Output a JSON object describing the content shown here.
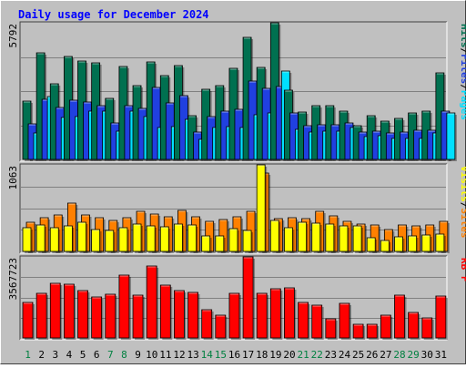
{
  "colors": {
    "background": "#c0c0c0",
    "frame_light": "#ffffff",
    "frame_dark": "#404040",
    "gridline": "#808080",
    "title": "#0000ff",
    "hits": "#007050",
    "files": "#2040e0",
    "pages": "#00e0ff",
    "visits": "#ffff00",
    "sites": "#ff8000",
    "kbf": "#ff0000",
    "weekend_day": "#008040",
    "weekday_day": "#000000"
  },
  "chart_data": {
    "type": "bar",
    "title": "Daily usage for December 2024",
    "categories": [
      "1",
      "2",
      "3",
      "4",
      "5",
      "6",
      "7",
      "8",
      "9",
      "10",
      "11",
      "12",
      "13",
      "14",
      "15",
      "16",
      "17",
      "18",
      "19",
      "20",
      "21",
      "22",
      "23",
      "24",
      "25",
      "26",
      "27",
      "28",
      "29",
      "30",
      "31"
    ],
    "weekend_days": [
      "1",
      "7",
      "8",
      "14",
      "15",
      "21",
      "22",
      "28",
      "29"
    ],
    "panels": [
      {
        "max_label": "5792",
        "ylim": [
          0,
          5792
        ],
        "axis_labels": [
          {
            "text": "Hits",
            "color": "#007050"
          },
          {
            "text": "Files",
            "color": "#2040e0"
          },
          {
            "text": "Pages",
            "color": "#00e0ff"
          }
        ],
        "separator": "/",
        "series": [
          {
            "name": "Hits",
            "values": [
              2473,
              4508,
              3202,
              4344,
              4176,
              4076,
              2587,
              3953,
              3146,
              4118,
              3565,
              3990,
              1843,
              2983,
              3121,
              3861,
              5190,
              3888,
              5792,
              2940,
              2010,
              2263,
              2283,
              2058,
              1431,
              1869,
              1628,
              1745,
              1985,
              2039,
              3649
            ]
          },
          {
            "name": "Files",
            "values": [
              1495,
              2545,
              2184,
              2513,
              2445,
              2263,
              1544,
              2286,
              2146,
              3067,
              2396,
              2705,
              1171,
              1807,
              2036,
              2137,
              3310,
              3007,
              3078,
              1986,
              1434,
              1485,
              1451,
              1549,
              1154,
              1195,
              1138,
              1168,
              1239,
              1226,
              2063
            ]
          },
          {
            "name": "Pages",
            "values": [
              1103,
              2664,
              1779,
              1815,
              2052,
              2056,
              1207,
              2047,
              1823,
              1370,
              1384,
              1696,
              854,
              1356,
              1407,
              1369,
              1907,
              1988,
              3732,
              1264,
              1167,
              1190,
              1193,
              1346,
              967,
              1001,
              869,
              891,
              876,
              1116,
              1963
            ]
          }
        ]
      },
      {
        "max_label": "1063",
        "ylim": [
          0,
          1063
        ],
        "axis_labels": [
          {
            "text": "Visits",
            "color": "#ffff00"
          },
          {
            "text": "Sites",
            "color": "#ff8000"
          }
        ],
        "separator": "/",
        "series": [
          {
            "name": "Visits",
            "values": [
              292,
              320,
              294,
              313,
              360,
              272,
              256,
              295,
              331,
              308,
              298,
              339,
              327,
              192,
              195,
              276,
              254,
              1063,
              375,
              291,
              362,
              351,
              339,
              310,
              316,
              164,
              130,
              175,
              195,
              207,
              215
            ]
          },
          {
            "name": "Sites",
            "values": [
              359,
              410,
              446,
              598,
              452,
              409,
              383,
              411,
              487,
              455,
              424,
              505,
              425,
              367,
              393,
              430,
              496,
              959,
              406,
              410,
              401,
              487,
              433,
              371,
              335,
              319,
              274,
              319,
              312,
              326,
              368
            ]
          }
        ]
      },
      {
        "max_label": "3567723",
        "ylim": [
          0,
          3567723
        ],
        "axis_labels": [
          {
            "text": "KB F",
            "color": "#ff0000"
          }
        ],
        "separator": "",
        "series": [
          {
            "name": "KB F",
            "values": [
              1566148,
              1980128,
              2390720,
              2347552,
              2101520,
              1810480,
              1915640,
              2773880,
              1895510,
              3152610,
              2314810,
              2067240,
              1999650,
              1247900,
              1001430,
              1947770,
              3567723,
              1953410,
              2157220,
              2213530,
              1557920,
              1447730,
              838570,
              1503370,
              597550,
              621100,
              1008570,
              1871570,
              1112660,
              864520,
              1843450
            ]
          }
        ]
      }
    ]
  }
}
